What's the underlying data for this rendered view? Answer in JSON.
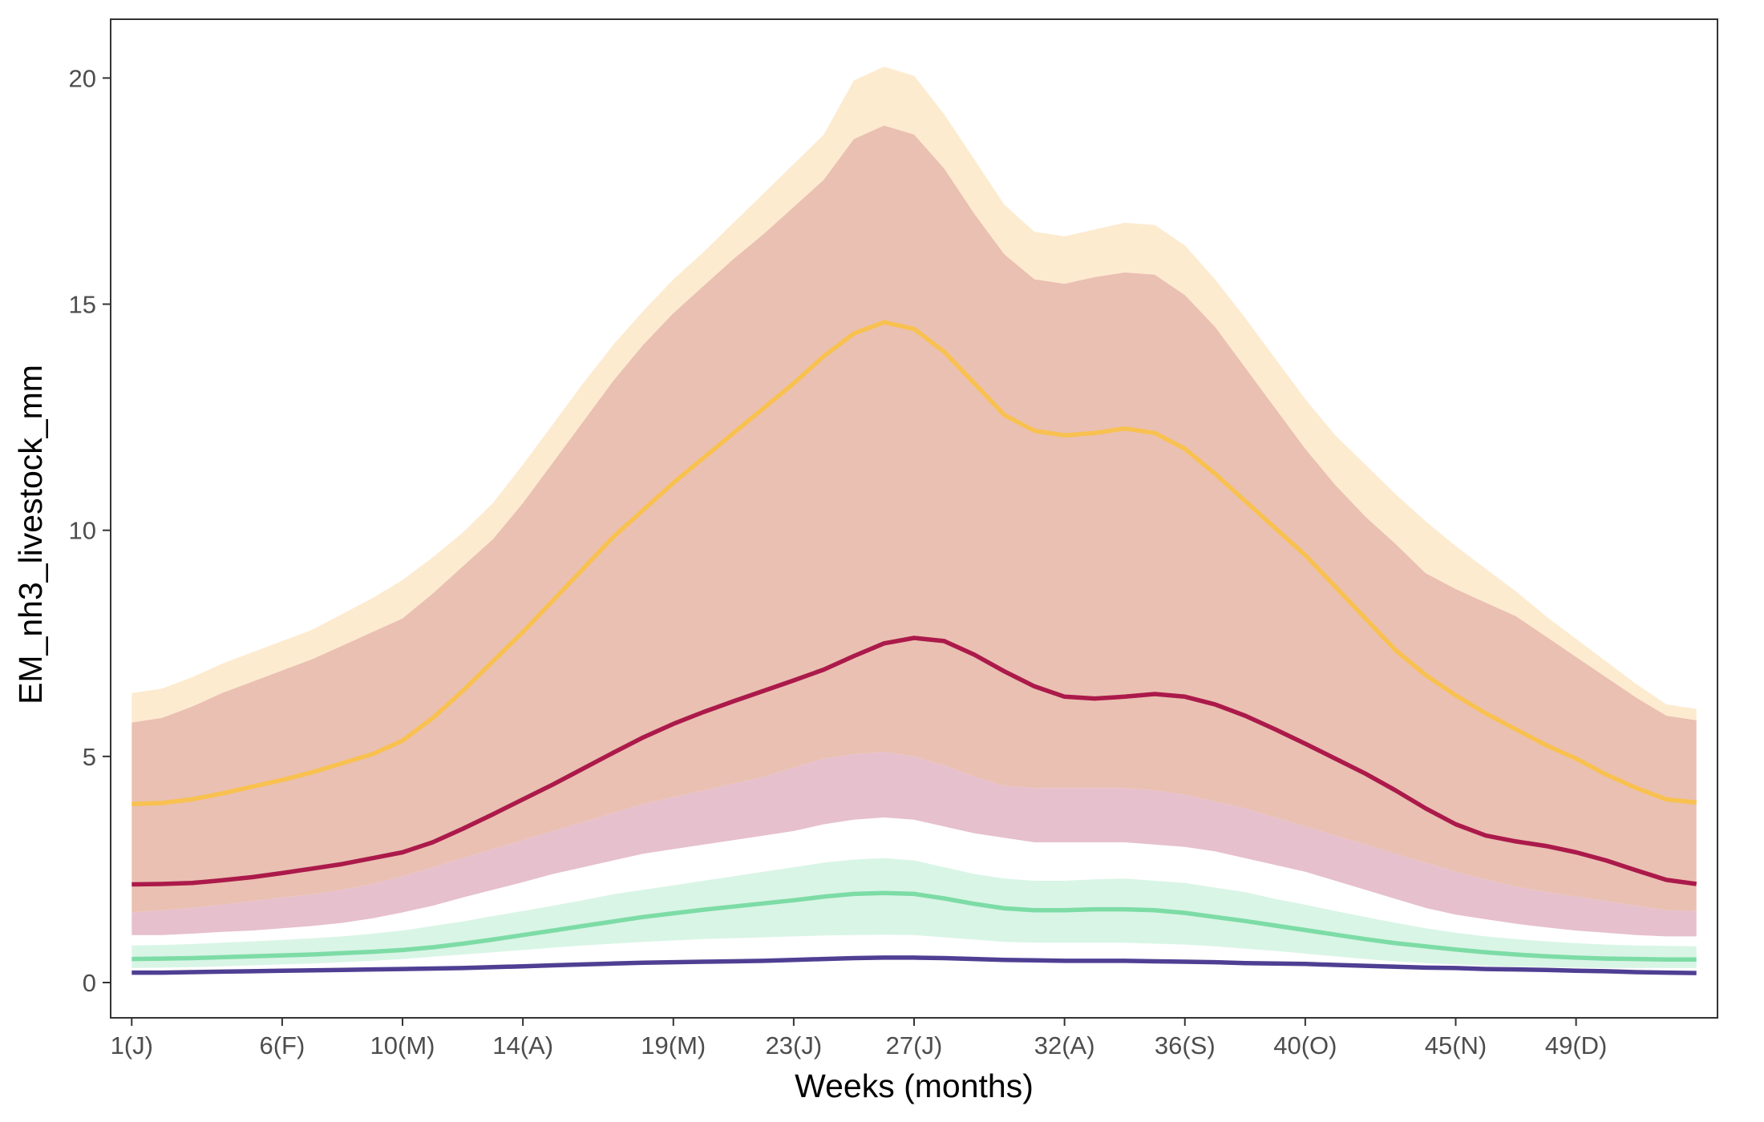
{
  "chart_data": {
    "type": "area",
    "title": "",
    "xlabel": "Weeks (months)",
    "ylabel": "EM_nh3_livestock_mm",
    "xlim": [
      0.3,
      53.7
    ],
    "ylim": [
      -0.78,
      21.3
    ],
    "grid": false,
    "legend": "none",
    "x_ticks": [
      {
        "value": 1,
        "label": "1(J)"
      },
      {
        "value": 6,
        "label": "6(F)"
      },
      {
        "value": 10,
        "label": "10(M)"
      },
      {
        "value": 14,
        "label": "14(A)"
      },
      {
        "value": 19,
        "label": "19(M)"
      },
      {
        "value": 23,
        "label": "23(J)"
      },
      {
        "value": 27,
        "label": "27(J)"
      },
      {
        "value": 32,
        "label": "32(A)"
      },
      {
        "value": 36,
        "label": "36(S)"
      },
      {
        "value": 40,
        "label": "40(O)"
      },
      {
        "value": 45,
        "label": "45(N)"
      },
      {
        "value": 49,
        "label": "49(D)"
      }
    ],
    "y_ticks": [
      {
        "value": 0,
        "label": "0"
      },
      {
        "value": 5,
        "label": "5"
      },
      {
        "value": 10,
        "label": "10"
      },
      {
        "value": 15,
        "label": "15"
      },
      {
        "value": 20,
        "label": "20"
      }
    ],
    "x": [
      1,
      2,
      3,
      4,
      5,
      6,
      7,
      8,
      9,
      10,
      11,
      12,
      13,
      14,
      15,
      16,
      17,
      18,
      19,
      20,
      21,
      22,
      23,
      24,
      25,
      26,
      27,
      28,
      29,
      30,
      31,
      32,
      33,
      34,
      35,
      36,
      37,
      38,
      39,
      40,
      41,
      42,
      43,
      44,
      45,
      46,
      47,
      48,
      49,
      50,
      51,
      52,
      53
    ],
    "bands": [
      {
        "color": "#fdebd0",
        "lower": [
          5.75,
          5.85,
          6.1,
          6.4,
          6.65,
          6.9,
          7.15,
          7.45,
          7.75,
          8.05,
          8.6,
          9.2,
          9.8,
          10.6,
          11.5,
          12.4,
          13.3,
          14.1,
          14.8,
          15.4,
          16.0,
          16.55,
          17.15,
          17.75,
          18.65,
          18.95,
          18.75,
          18.0,
          17.0,
          16.1,
          15.55,
          15.45,
          15.6,
          15.7,
          15.65,
          15.2,
          14.5,
          13.6,
          12.7,
          11.8,
          11.0,
          10.3,
          9.7,
          9.05,
          8.7,
          8.4,
          8.1,
          7.65,
          7.2,
          6.75,
          6.3,
          5.9,
          5.8
        ],
        "upper": [
          6.4,
          6.5,
          6.75,
          7.05,
          7.3,
          7.55,
          7.8,
          8.15,
          8.5,
          8.9,
          9.4,
          9.95,
          10.6,
          11.45,
          12.35,
          13.25,
          14.1,
          14.85,
          15.55,
          16.15,
          16.8,
          17.45,
          18.1,
          18.75,
          19.95,
          20.25,
          20.05,
          19.2,
          18.2,
          17.2,
          16.6,
          16.5,
          16.65,
          16.8,
          16.75,
          16.3,
          15.55,
          14.7,
          13.8,
          12.9,
          12.1,
          11.45,
          10.8,
          10.2,
          9.65,
          9.15,
          8.65,
          8.1,
          7.6,
          7.1,
          6.6,
          6.15,
          6.05
        ]
      },
      {
        "color": "#eac0b2",
        "lower": [
          1.55,
          1.6,
          1.65,
          1.72,
          1.8,
          1.88,
          1.95,
          2.05,
          2.18,
          2.35,
          2.55,
          2.75,
          2.95,
          3.15,
          3.35,
          3.55,
          3.75,
          3.95,
          4.1,
          4.25,
          4.4,
          4.55,
          4.75,
          4.95,
          5.05,
          5.1,
          5.0,
          4.8,
          4.55,
          4.35,
          4.3,
          4.3,
          4.3,
          4.3,
          4.25,
          4.15,
          4.0,
          3.85,
          3.65,
          3.45,
          3.25,
          3.05,
          2.85,
          2.65,
          2.45,
          2.28,
          2.12,
          2.0,
          1.9,
          1.8,
          1.7,
          1.6,
          1.58
        ],
        "upper": [
          5.75,
          5.85,
          6.1,
          6.4,
          6.65,
          6.9,
          7.15,
          7.45,
          7.75,
          8.05,
          8.6,
          9.2,
          9.8,
          10.6,
          11.5,
          12.4,
          13.3,
          14.1,
          14.8,
          15.4,
          16.0,
          16.55,
          17.15,
          17.75,
          18.65,
          18.95,
          18.75,
          18.0,
          17.0,
          16.1,
          15.55,
          15.45,
          15.6,
          15.7,
          15.65,
          15.2,
          14.5,
          13.6,
          12.7,
          11.8,
          11.0,
          10.3,
          9.7,
          9.05,
          8.7,
          8.4,
          8.1,
          7.65,
          7.2,
          6.75,
          6.3,
          5.9,
          5.8
        ]
      },
      {
        "color": "#e6c0cc",
        "lower": [
          1.05,
          1.05,
          1.08,
          1.12,
          1.15,
          1.2,
          1.25,
          1.32,
          1.42,
          1.55,
          1.7,
          1.88,
          2.05,
          2.22,
          2.4,
          2.55,
          2.7,
          2.85,
          2.95,
          3.05,
          3.15,
          3.25,
          3.35,
          3.5,
          3.6,
          3.65,
          3.6,
          3.45,
          3.3,
          3.2,
          3.1,
          3.1,
          3.1,
          3.1,
          3.05,
          3.0,
          2.9,
          2.75,
          2.6,
          2.45,
          2.25,
          2.05,
          1.85,
          1.65,
          1.5,
          1.4,
          1.3,
          1.22,
          1.15,
          1.1,
          1.05,
          1.02,
          1.02
        ],
        "upper": [
          1.55,
          1.6,
          1.65,
          1.72,
          1.8,
          1.88,
          1.95,
          2.05,
          2.18,
          2.35,
          2.55,
          2.75,
          2.95,
          3.15,
          3.35,
          3.55,
          3.75,
          3.95,
          4.1,
          4.25,
          4.4,
          4.55,
          4.75,
          4.95,
          5.05,
          5.1,
          5.0,
          4.8,
          4.55,
          4.35,
          4.3,
          4.3,
          4.3,
          4.3,
          4.25,
          4.15,
          4.0,
          3.85,
          3.65,
          3.45,
          3.25,
          3.05,
          2.85,
          2.65,
          2.45,
          2.28,
          2.12,
          2.0,
          1.9,
          1.8,
          1.7,
          1.6,
          1.58
        ]
      },
      {
        "color": "#d9f5e6",
        "lower": [
          0.32,
          0.33,
          0.34,
          0.36,
          0.38,
          0.4,
          0.42,
          0.45,
          0.48,
          0.52,
          0.57,
          0.62,
          0.67,
          0.72,
          0.77,
          0.82,
          0.86,
          0.9,
          0.93,
          0.96,
          0.98,
          1.0,
          1.02,
          1.04,
          1.05,
          1.06,
          1.05,
          1.0,
          0.95,
          0.9,
          0.88,
          0.88,
          0.88,
          0.88,
          0.86,
          0.84,
          0.8,
          0.75,
          0.7,
          0.64,
          0.58,
          0.52,
          0.47,
          0.43,
          0.4,
          0.37,
          0.35,
          0.34,
          0.33,
          0.32,
          0.32,
          0.32,
          0.32
        ],
        "upper": [
          0.82,
          0.83,
          0.85,
          0.88,
          0.91,
          0.94,
          0.98,
          1.02,
          1.08,
          1.15,
          1.25,
          1.35,
          1.47,
          1.58,
          1.7,
          1.82,
          1.95,
          2.05,
          2.15,
          2.25,
          2.35,
          2.45,
          2.55,
          2.65,
          2.72,
          2.75,
          2.7,
          2.55,
          2.4,
          2.3,
          2.25,
          2.25,
          2.28,
          2.3,
          2.25,
          2.2,
          2.1,
          2.0,
          1.85,
          1.72,
          1.58,
          1.45,
          1.32,
          1.2,
          1.1,
          1.02,
          0.96,
          0.91,
          0.87,
          0.84,
          0.82,
          0.81,
          0.8
        ]
      }
    ],
    "series": [
      {
        "color": "#f8c150",
        "values": [
          3.95,
          3.97,
          4.05,
          4.18,
          4.33,
          4.48,
          4.65,
          4.85,
          5.05,
          5.35,
          5.85,
          6.45,
          7.1,
          7.75,
          8.45,
          9.15,
          9.85,
          10.45,
          11.05,
          11.6,
          12.15,
          12.7,
          13.25,
          13.85,
          14.35,
          14.6,
          14.45,
          13.95,
          13.25,
          12.55,
          12.2,
          12.1,
          12.15,
          12.25,
          12.15,
          11.8,
          11.25,
          10.65,
          10.05,
          9.45,
          8.75,
          8.05,
          7.35,
          6.8,
          6.35,
          5.95,
          5.6,
          5.25,
          4.95,
          4.6,
          4.3,
          4.05,
          3.98
        ]
      },
      {
        "color": "#ab1a4a",
        "values": [
          2.17,
          2.18,
          2.2,
          2.26,
          2.33,
          2.42,
          2.52,
          2.62,
          2.75,
          2.88,
          3.1,
          3.4,
          3.72,
          4.05,
          4.38,
          4.73,
          5.08,
          5.42,
          5.72,
          5.98,
          6.22,
          6.45,
          6.68,
          6.92,
          7.22,
          7.5,
          7.62,
          7.55,
          7.25,
          6.88,
          6.55,
          6.32,
          6.28,
          6.32,
          6.38,
          6.32,
          6.15,
          5.9,
          5.6,
          5.28,
          4.95,
          4.62,
          4.25,
          3.85,
          3.5,
          3.25,
          3.12,
          3.02,
          2.88,
          2.7,
          2.48,
          2.27,
          2.18
        ]
      },
      {
        "color": "#7ddca6",
        "values": [
          0.52,
          0.53,
          0.54,
          0.56,
          0.58,
          0.6,
          0.62,
          0.65,
          0.68,
          0.72,
          0.78,
          0.86,
          0.95,
          1.05,
          1.15,
          1.25,
          1.35,
          1.45,
          1.53,
          1.61,
          1.68,
          1.75,
          1.82,
          1.9,
          1.96,
          1.98,
          1.96,
          1.86,
          1.74,
          1.64,
          1.6,
          1.6,
          1.62,
          1.62,
          1.6,
          1.54,
          1.45,
          1.36,
          1.26,
          1.16,
          1.06,
          0.96,
          0.87,
          0.8,
          0.73,
          0.67,
          0.62,
          0.58,
          0.55,
          0.53,
          0.52,
          0.51,
          0.51
        ]
      },
      {
        "color": "#4f3f93",
        "values": [
          0.22,
          0.22,
          0.23,
          0.24,
          0.25,
          0.26,
          0.27,
          0.28,
          0.29,
          0.3,
          0.31,
          0.32,
          0.34,
          0.36,
          0.38,
          0.4,
          0.42,
          0.44,
          0.45,
          0.46,
          0.47,
          0.48,
          0.5,
          0.52,
          0.54,
          0.55,
          0.55,
          0.54,
          0.52,
          0.5,
          0.49,
          0.48,
          0.48,
          0.48,
          0.47,
          0.46,
          0.45,
          0.43,
          0.42,
          0.41,
          0.39,
          0.37,
          0.35,
          0.33,
          0.32,
          0.3,
          0.29,
          0.28,
          0.26,
          0.25,
          0.23,
          0.22,
          0.21
        ]
      }
    ]
  }
}
